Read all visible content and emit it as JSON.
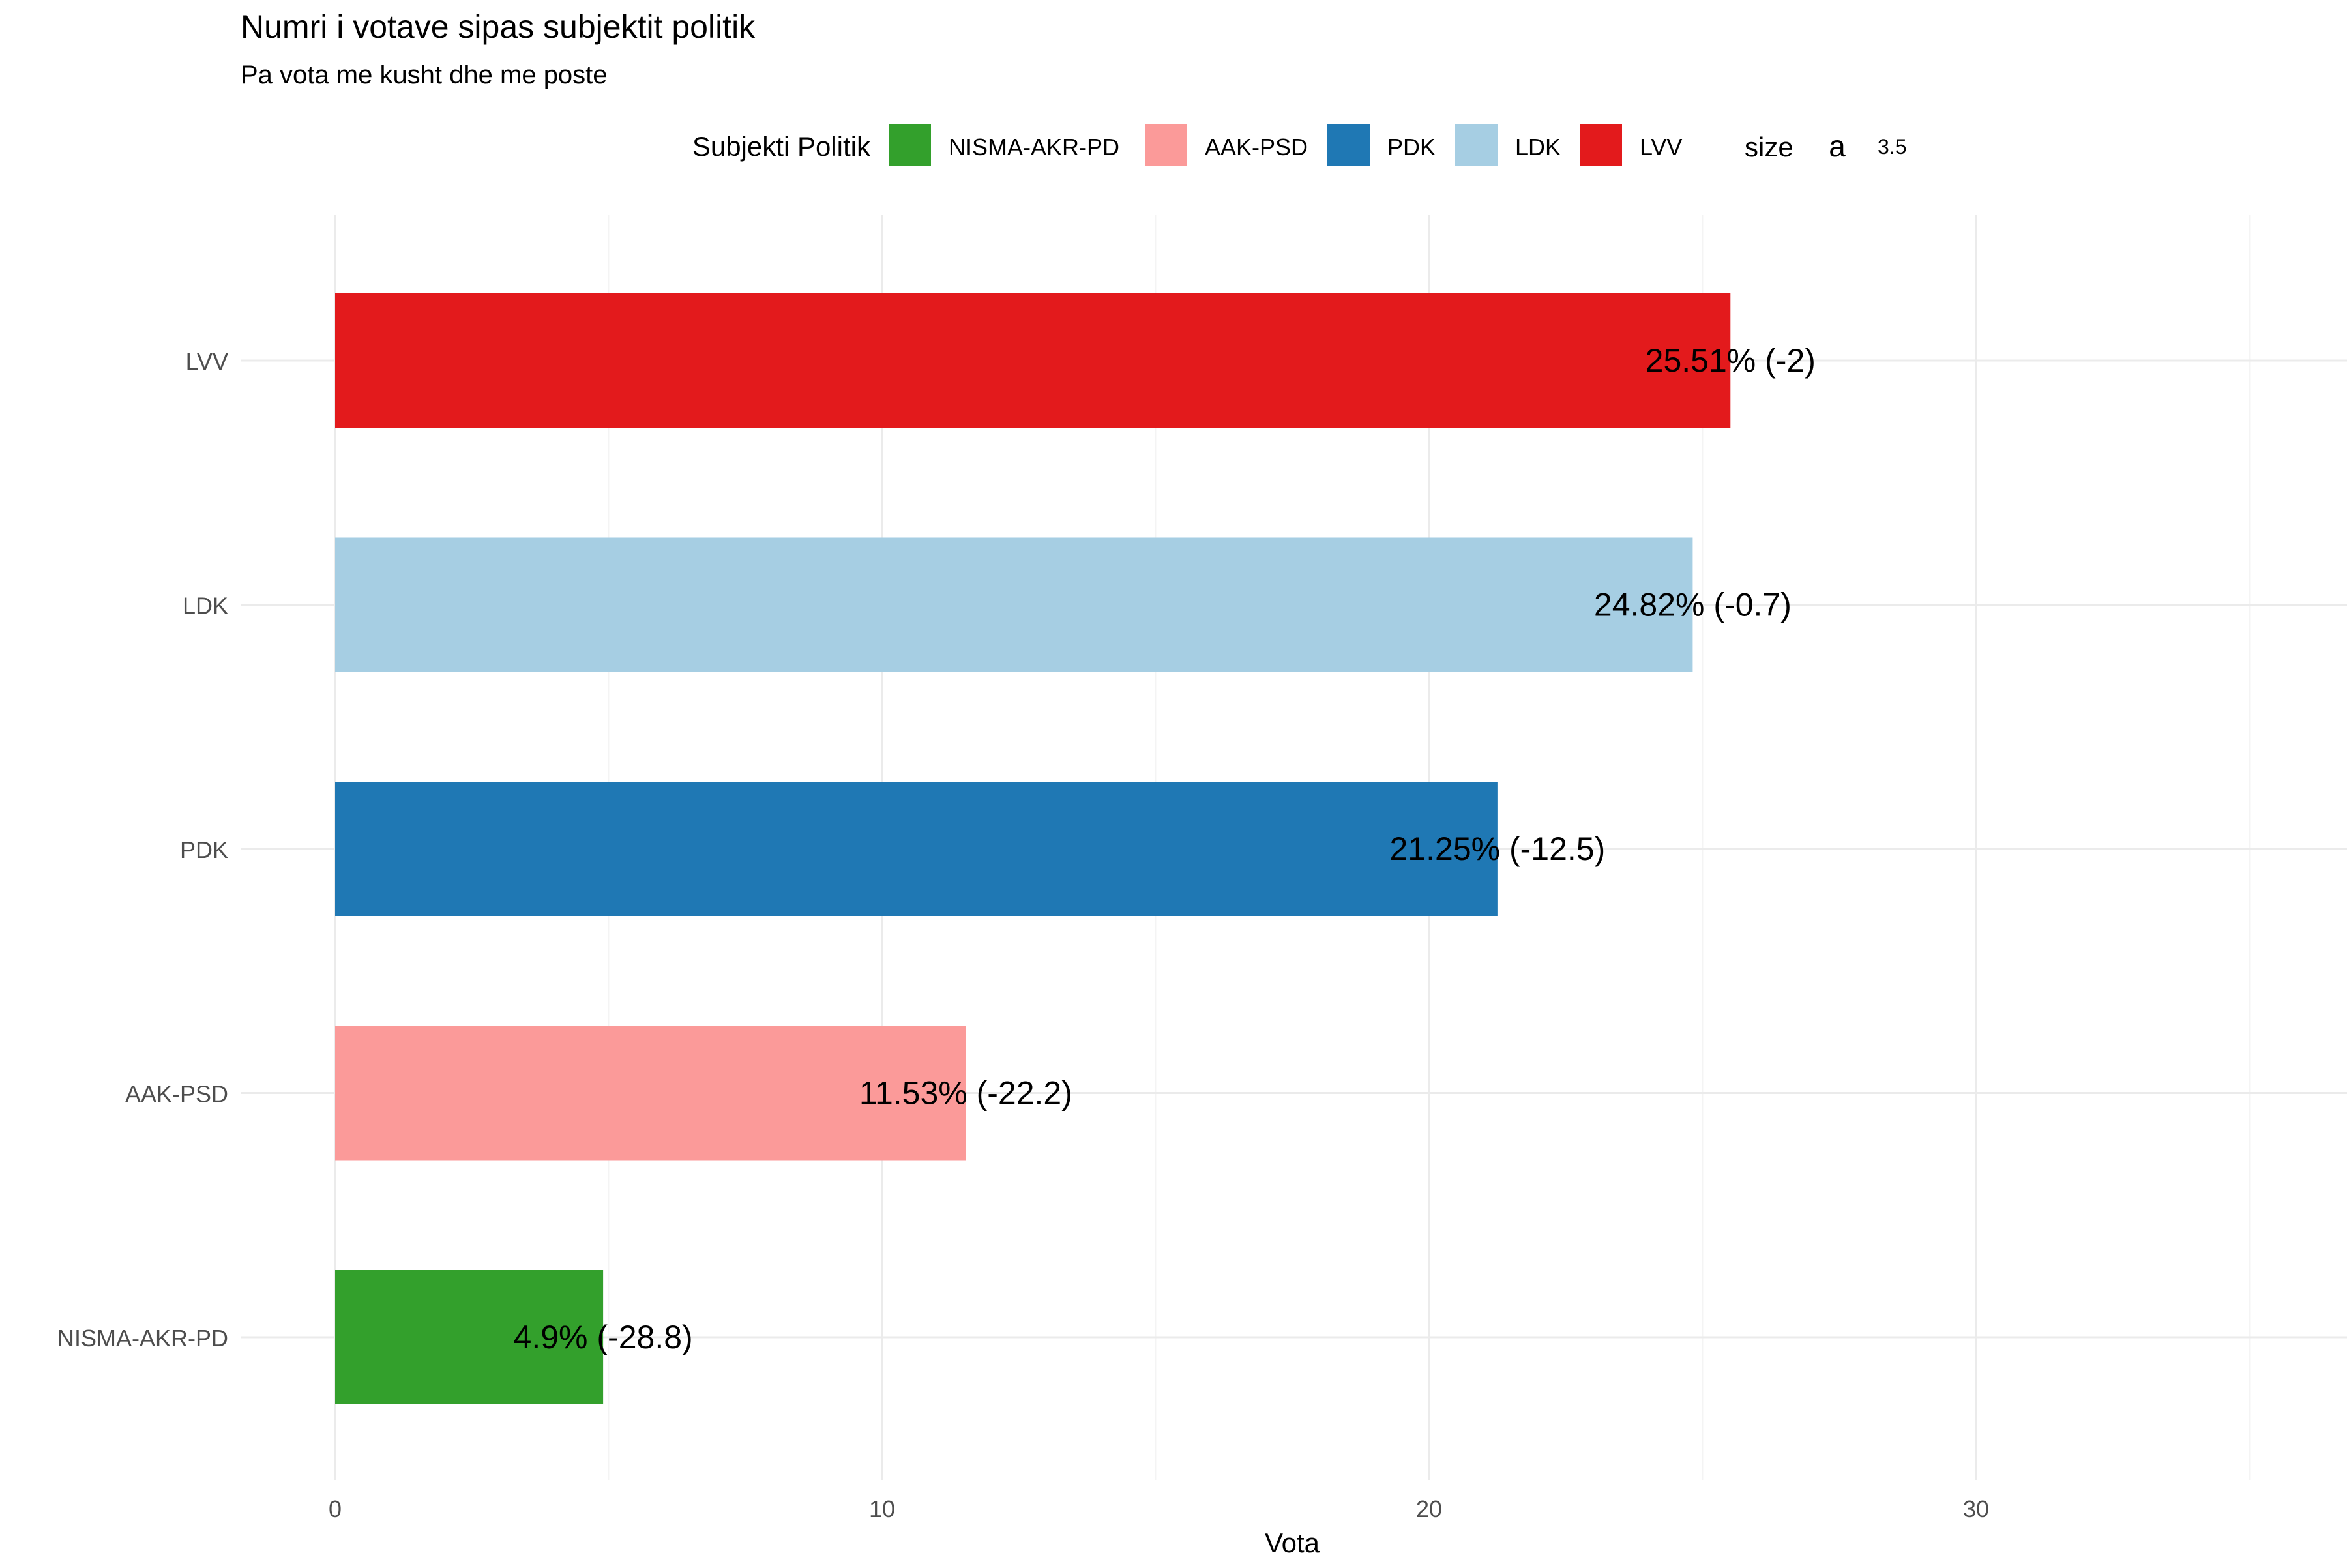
{
  "chart_data": {
    "type": "bar",
    "orientation": "horizontal",
    "title": "Numri i votave sipas subjektit politik",
    "subtitle": "Pa vota me kusht dhe me poste",
    "xlabel": "Vota",
    "ylabel": "",
    "xlim": [
      0,
      37
    ],
    "x_ticks": [
      0,
      10,
      20,
      30
    ],
    "grid": true,
    "categories": [
      "LVV",
      "LDK",
      "PDK",
      "AAK-PSD",
      "NISMA-AKR-PD"
    ],
    "values": [
      25.51,
      24.82,
      21.25,
      11.53,
      4.9
    ],
    "data_labels": [
      "25.51% (-2)",
      "24.82% (-0.7)",
      "21.25% (-12.5)",
      "11.53% (-22.2)",
      "4.9% (-28.8)"
    ],
    "colors": [
      "#E31A1C",
      "#A6CEE3",
      "#1F78B4",
      "#FB9A99",
      "#33A02C"
    ],
    "legend": {
      "position": "top",
      "title": "Subjekti Politik",
      "items": [
        {
          "label": "NISMA-AKR-PD",
          "color": "#33A02C"
        },
        {
          "label": "AAK-PSD",
          "color": "#FB9A99"
        },
        {
          "label": "PDK",
          "color": "#1F78B4"
        },
        {
          "label": "LDK",
          "color": "#A6CEE3"
        },
        {
          "label": "LVV",
          "color": "#E31A1C"
        }
      ],
      "size_title": "size",
      "size_glyph": "a",
      "size_value": "3.5"
    }
  }
}
